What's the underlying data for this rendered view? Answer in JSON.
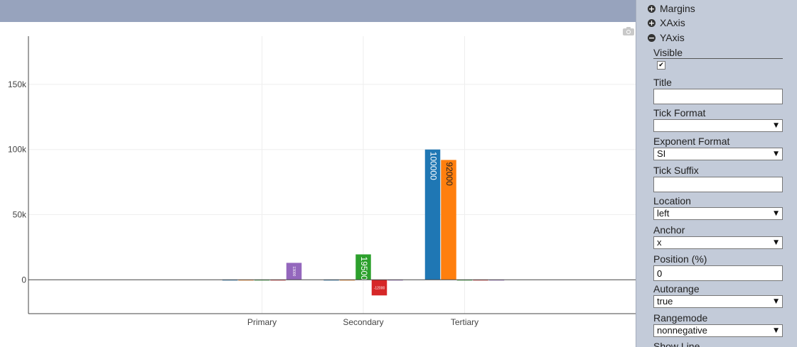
{
  "chart_data": {
    "type": "bar",
    "categories": [
      "Primary",
      "Secondary",
      "Tertiary"
    ],
    "series": [
      {
        "color": "#1f77b4",
        "values": [
          0,
          0,
          100000
        ],
        "labels": [
          "",
          "",
          "100000"
        ]
      },
      {
        "color": "#ff7f0e",
        "values": [
          0,
          0,
          92000
        ],
        "labels": [
          "",
          "",
          "92000"
        ]
      },
      {
        "color": "#2ca02c",
        "values": [
          0,
          19500,
          0
        ],
        "labels": [
          "",
          "19500",
          ""
        ]
      },
      {
        "color": "#d62728",
        "values": [
          0,
          -12000,
          0
        ],
        "labels": [
          "",
          "-12000",
          ""
        ]
      },
      {
        "color": "#9467bd",
        "values": [
          13000,
          0,
          0
        ],
        "labels": [
          "13000",
          "",
          ""
        ]
      }
    ],
    "ylim": [
      -26000,
      187000
    ],
    "yticks": [
      0,
      50000,
      100000,
      150000
    ],
    "ytick_labels": [
      "0",
      "50k",
      "100k",
      "150k"
    ],
    "grid": true,
    "title": "",
    "xlabel": "",
    "ylabel": ""
  },
  "toolbar": {
    "camera_icon": "camera-icon"
  },
  "panel": {
    "sections": {
      "margins": "Margins",
      "xaxis": "XAxis",
      "yaxis": "YAxis"
    },
    "icons": {
      "expand": "+",
      "collapse": "−"
    },
    "visible_label": "Visible",
    "visible_checked": "✔",
    "title_label": "Title",
    "title_value": "",
    "tick_format_label": "Tick Format",
    "tick_format_value": "",
    "exponent_format_label": "Exponent Format",
    "exponent_format_value": "SI",
    "tick_suffix_label": "Tick Suffix",
    "tick_suffix_value": "",
    "location_label": "Location",
    "location_value": "left",
    "anchor_label": "Anchor",
    "anchor_value": "x",
    "position_label": "Position (%)",
    "position_value": "0",
    "autorange_label": "Autorange",
    "autorange_value": "true",
    "rangemode_label": "Rangemode",
    "rangemode_value": "nonnegative",
    "show_line_label": "Show Line",
    "dropdown_arrow": "▼"
  }
}
